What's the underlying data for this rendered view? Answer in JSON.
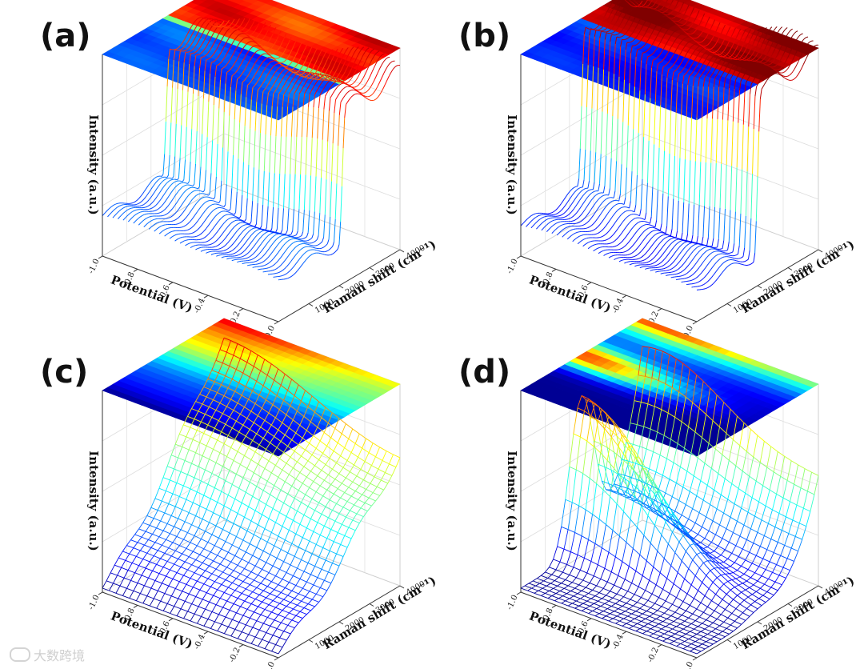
{
  "figure": {
    "watermark": "大数跨境",
    "watermark_logo": "logo-icon"
  },
  "chart_data": [
    {
      "panel": "(a)",
      "type": "surface3d",
      "shape": "step",
      "xlabel": "Potential (V)",
      "ylabel": "Raman shift (cm⁻¹)",
      "zlabel": "Intensity (a.u.)",
      "xlim": [
        -1.0,
        0.0
      ],
      "ylim": [
        0,
        4000
      ],
      "x_ticks": [
        "-1.0",
        "-0.8",
        "-0.6",
        "-0.4",
        "-0.2",
        "0.0"
      ],
      "y_ticks": [
        "1000",
        "2000",
        "3000",
        "4000"
      ],
      "render": "waterfall-lines",
      "projection": "heatmap-top",
      "step_raman_shift": 2100,
      "low_level": 0.2,
      "high_level": 0.85,
      "colormap": "jet"
    },
    {
      "panel": "(b)",
      "type": "surface3d",
      "shape": "step",
      "xlabel": "Potential (V)",
      "ylabel": "Raman shift (cm⁻¹)",
      "zlabel": "Intensity (a.u.)",
      "xlim": [
        -1.0,
        0.0
      ],
      "ylim": [
        0,
        4000
      ],
      "x_ticks": [
        "-1.0",
        "-0.8",
        "-0.6",
        "-0.4",
        "-0.2",
        "0.0"
      ],
      "y_ticks": [
        "1000",
        "2000",
        "3000",
        "4000"
      ],
      "render": "waterfall-lines",
      "projection": "heatmap-top",
      "step_raman_shift": 2000,
      "low_level": 0.15,
      "high_level": 0.95,
      "colormap": "jet"
    },
    {
      "panel": "(c)",
      "type": "surface3d",
      "shape": "ramp",
      "xlabel": "Potential (V)",
      "ylabel": "Raman shift (cm⁻¹)",
      "zlabel": "Intensity (a.u.)",
      "xlim": [
        -1.0,
        0.0
      ],
      "ylim": [
        0,
        4000
      ],
      "x_ticks": [
        "-1.0",
        "-0.8",
        "-0.6",
        "-0.4",
        "-0.2",
        "0.0"
      ],
      "y_ticks": [
        "1000",
        "2000",
        "3000",
        "4000"
      ],
      "render": "mesh",
      "projection": "heatmap-top",
      "colormap": "jet"
    },
    {
      "panel": "(d)",
      "type": "surface3d",
      "shape": "peak",
      "xlabel": "Potential (V)",
      "ylabel": "Raman shift (cm⁻¹)",
      "zlabel": "Intensity (a.u.)",
      "xlim": [
        -1.0,
        0.0
      ],
      "ylim": [
        0,
        4000
      ],
      "x_ticks": [
        "-1.0",
        "-0.8",
        "-0.6",
        "-0.4",
        "-0.2",
        "0.0"
      ],
      "y_ticks": [
        "1000",
        "2000",
        "3000",
        "4000"
      ],
      "render": "mesh",
      "projection": "heatmap-top",
      "peak_raman_shift": 2000,
      "peak_height": 0.75,
      "edge_height": 0.95,
      "colormap": "jet"
    }
  ]
}
